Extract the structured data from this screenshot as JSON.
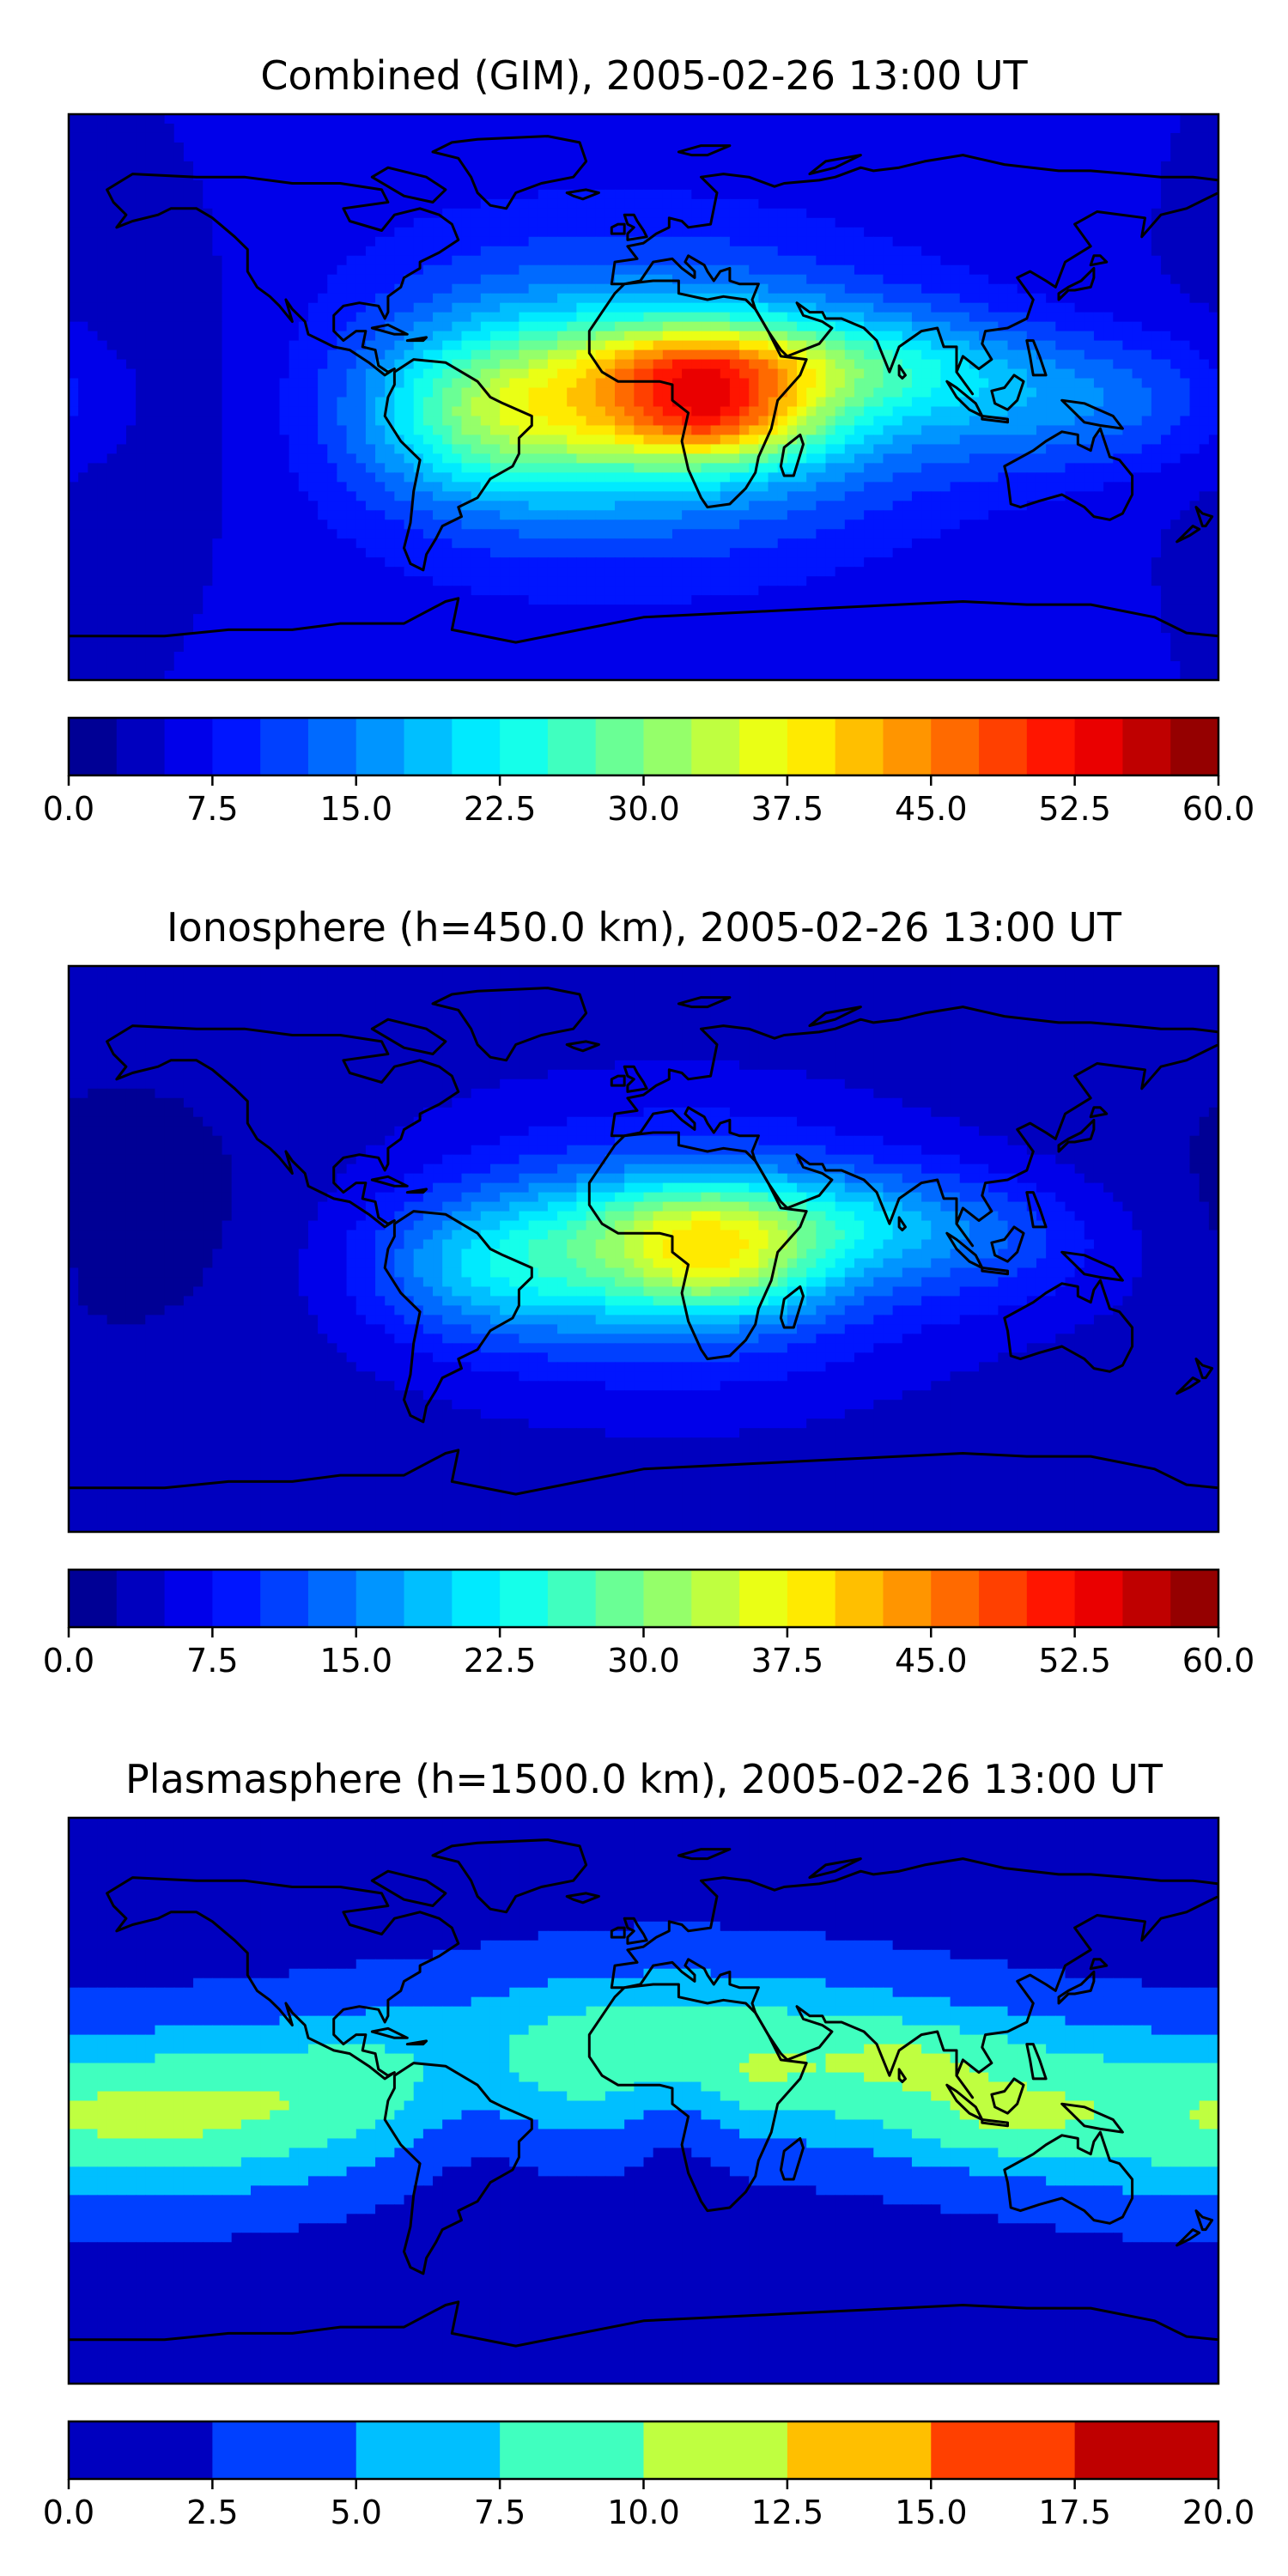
{
  "chart_data": [
    {
      "type": "heatmap",
      "title": "Combined (GIM), 2005-02-26 13:00 UT",
      "colorbar": {
        "min": 0,
        "max": 60,
        "levels": 24,
        "ticks": [
          "0.0",
          "7.5",
          "15.0",
          "22.5",
          "30.0",
          "37.5",
          "45.0",
          "52.5",
          "60.0"
        ]
      },
      "features": [
        {
          "name": "equatorial-anomaly-africa",
          "lon": 15,
          "lat": 0,
          "value": 47
        },
        {
          "name": "equatorial-crest-americas",
          "lon": -45,
          "lat": -5,
          "value": 33
        },
        {
          "name": "equatorial-crest-asia",
          "lon": 75,
          "lat": 10,
          "value": 27
        },
        {
          "name": "pacific-low",
          "lon": -150,
          "lat": 0,
          "value": 12
        }
      ]
    },
    {
      "type": "heatmap",
      "title": "Ionosphere  (h=450.0 km), 2005-02-26 13:00 UT",
      "colorbar": {
        "min": 0,
        "max": 60,
        "levels": 24,
        "ticks": [
          "0.0",
          "7.5",
          "15.0",
          "22.5",
          "30.0",
          "37.5",
          "45.0",
          "52.5",
          "60.0"
        ]
      },
      "features": [
        {
          "name": "equatorial-anomaly-africa",
          "lon": 15,
          "lat": 0,
          "value": 38
        },
        {
          "name": "equatorial-crest-americas",
          "lon": -45,
          "lat": -5,
          "value": 25
        },
        {
          "name": "equatorial-crest-asia",
          "lon": 75,
          "lat": 10,
          "value": 17
        },
        {
          "name": "pacific-low",
          "lon": -150,
          "lat": 10,
          "value": 4
        }
      ]
    },
    {
      "type": "heatmap",
      "title": "Plasmasphere (h=1500.0 km), 2005-02-26 13:00 UT",
      "colorbar": {
        "min": 0,
        "max": 20,
        "levels": 8,
        "ticks": [
          "0.0",
          "2.5",
          "5.0",
          "7.5",
          "10.0",
          "12.5",
          "15.0",
          "17.5",
          "20.0"
        ]
      },
      "features": [
        {
          "name": "band-max-indonesia",
          "lon": 110,
          "lat": -8,
          "value": 11
        },
        {
          "name": "band-max-india",
          "lon": 85,
          "lat": 15,
          "value": 11
        },
        {
          "name": "band-max-east-africa",
          "lon": 35,
          "lat": 5,
          "value": 11
        },
        {
          "name": "band-pacific",
          "lon": -150,
          "lat": -2,
          "value": 9
        }
      ]
    }
  ]
}
